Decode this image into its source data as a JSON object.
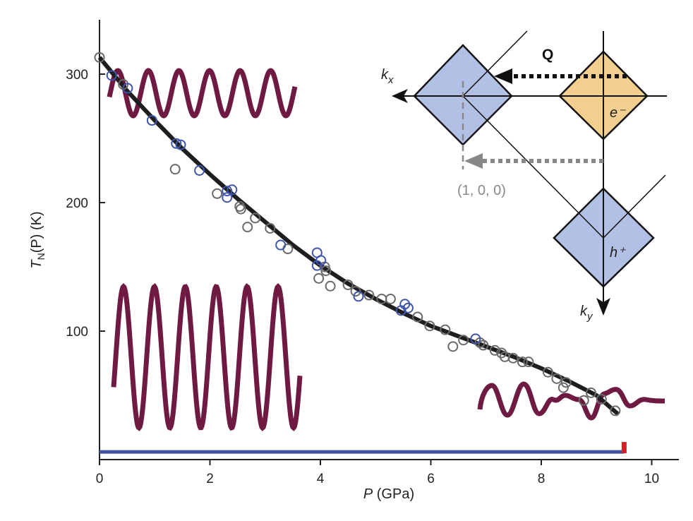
{
  "chart_data": {
    "type": "scatter",
    "title": "",
    "xlabel": {
      "var": "P",
      "unit": " (GPa)"
    },
    "ylabel": {
      "T": "T",
      "sub": "N",
      "rest": "(P) (K)"
    },
    "xlim": [
      0,
      10.5
    ],
    "ylim": [
      0,
      343
    ],
    "xticks": [
      0,
      2,
      4,
      6,
      8,
      10
    ],
    "yticks": [
      100,
      200,
      300
    ],
    "grid": false,
    "series": [
      {
        "name": "gray",
        "color": "#6a6a6a",
        "points": [
          [
            0,
            313
          ],
          [
            0.43,
            292
          ],
          [
            1.37,
            226
          ],
          [
            2.13,
            207
          ],
          [
            2.54,
            197
          ],
          [
            2.56,
            195
          ],
          [
            2.68,
            181
          ],
          [
            2.82,
            188
          ],
          [
            3.09,
            180
          ],
          [
            3.41,
            164
          ],
          [
            3.97,
            141
          ],
          [
            4.08,
            150
          ],
          [
            4.1,
            147
          ],
          [
            4.18,
            135
          ],
          [
            4.5,
            136
          ],
          [
            4.64,
            131
          ],
          [
            4.88,
            128
          ],
          [
            5.11,
            125
          ],
          [
            5.27,
            125
          ],
          [
            5.76,
            111
          ],
          [
            5.98,
            104
          ],
          [
            6.26,
            101
          ],
          [
            6.4,
            88
          ],
          [
            6.59,
            93
          ],
          [
            6.89,
            91
          ],
          [
            6.95,
            89
          ],
          [
            7.16,
            85
          ],
          [
            7.28,
            83
          ],
          [
            7.34,
            80
          ],
          [
            7.49,
            79
          ],
          [
            7.66,
            76
          ],
          [
            7.77,
            76
          ],
          [
            8.12,
            68
          ],
          [
            8.28,
            63
          ],
          [
            8.45,
            60
          ],
          [
            8.4,
            56
          ],
          [
            8.77,
            46
          ],
          [
            8.9,
            52
          ],
          [
            9.09,
            47
          ],
          [
            9.34,
            38
          ]
        ]
      },
      {
        "name": "blue",
        "color": "#3f55a8",
        "points": [
          [
            0.22,
            299
          ],
          [
            0.51,
            289
          ],
          [
            0.95,
            264
          ],
          [
            1.39,
            246
          ],
          [
            1.47,
            245
          ],
          [
            1.81,
            225
          ],
          [
            2.31,
            209
          ],
          [
            2.4,
            210
          ],
          [
            2.31,
            204
          ],
          [
            3.28,
            167
          ],
          [
            3.94,
            161
          ],
          [
            4.01,
            155
          ],
          [
            3.94,
            151
          ],
          [
            4.69,
            127
          ],
          [
            5.46,
            116
          ],
          [
            5.53,
            121
          ],
          [
            5.59,
            118
          ],
          [
            6.81,
            94
          ]
        ]
      }
    ],
    "fit": {
      "name": "fit",
      "color": "#1e1e1e",
      "points": [
        [
          0,
          313
        ],
        [
          0.5,
          287
        ],
        [
          1,
          264
        ],
        [
          1.5,
          242
        ],
        [
          2,
          222
        ],
        [
          2.5,
          203
        ],
        [
          3,
          185
        ],
        [
          3.5,
          167
        ],
        [
          4,
          151
        ],
        [
          4.5,
          137
        ],
        [
          5,
          125
        ],
        [
          5.5,
          114
        ],
        [
          6,
          104
        ],
        [
          6.5,
          96
        ],
        [
          7,
          88
        ],
        [
          7.5,
          80
        ],
        [
          8,
          71
        ],
        [
          8.5,
          61
        ],
        [
          9,
          50
        ],
        [
          9.4,
          35
        ]
      ]
    },
    "range_bar": {
      "from": 0,
      "to": 9.5,
      "value": 6,
      "color": "#3f51a0",
      "end_color": "#d42027"
    },
    "wave_color": "#6e1a43",
    "inset": {
      "kx": {
        "k": "k",
        "sub": "x"
      },
      "ky": {
        "k": "k",
        "sub": "y"
      },
      "q": "Q",
      "electron": "e⁻",
      "hole": "h⁺",
      "vector": "(1, 0, 0)",
      "blue_fill": "#b3c0e6",
      "orange_fill": "#f2cf8e"
    }
  }
}
